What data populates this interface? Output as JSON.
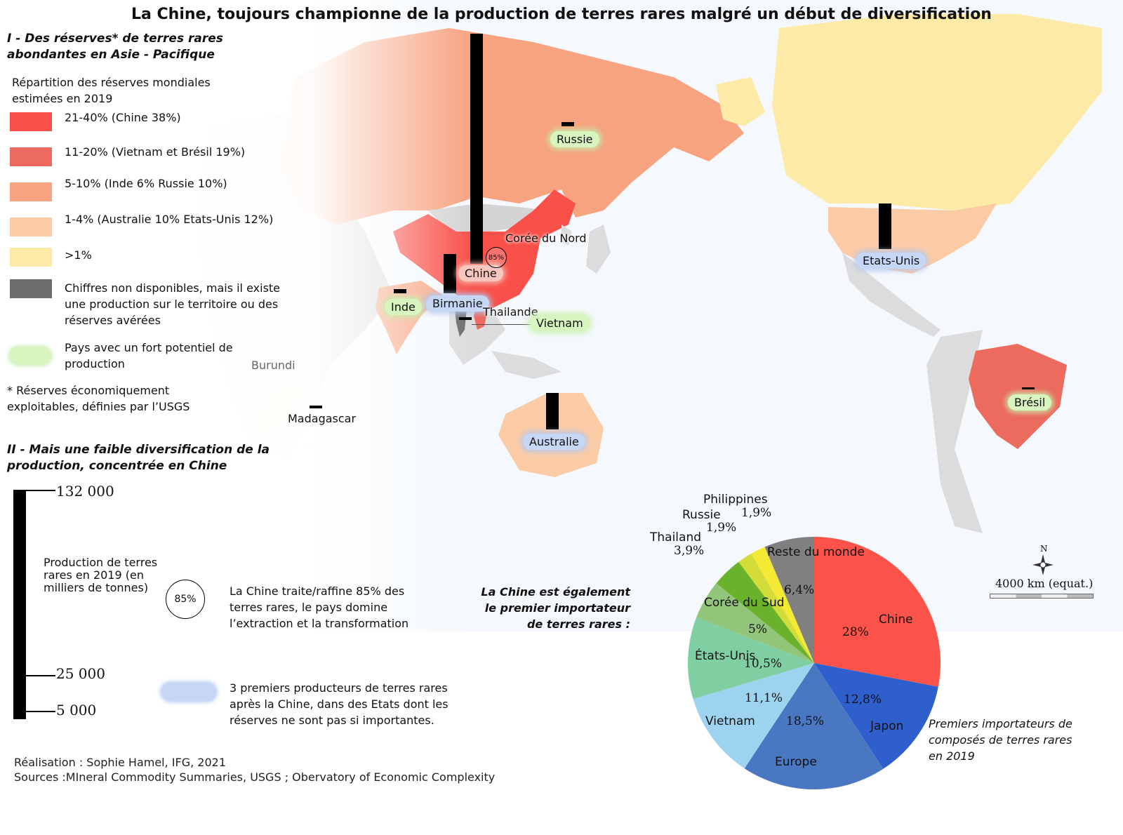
{
  "title": "La Chine, toujours championne de la production de terres rares malgré un début de diversification",
  "section1": {
    "heading": "I - Des réserves* de terres rares abondantes en Asie - Pacifique",
    "legend_title": "Répartition des réserves mondiales estimées en 2019",
    "items": [
      {
        "label": "21-40% (Chine 38%)",
        "color": "#f9514a"
      },
      {
        "label": "11-20% (Vietnam et Brésil 19%)",
        "color": "#ec6a5e"
      },
      {
        "label": "5-10% (Inde 6%  Russie 10%)",
        "color": "#f7a380"
      },
      {
        "label": "1-4% (Australie 10% Etats-Unis 12%)",
        "color": "#fbcba6"
      },
      {
        "label": ">1%",
        "color": "#fdeaa6"
      },
      {
        "label": "Chiffres non disponibles, mais il existe une production sur le territoire ou des réserves avérées",
        "color": "#6d6d6d"
      }
    ],
    "potential_label": "Pays avec un fort potentiel de production",
    "footnote": "* Réserves économiquement exploitables, définies par l’USGS"
  },
  "section2": {
    "heading": "II - Mais une faible diversification de la production, concentrée en Chine",
    "scale_ticks": [
      "132 000",
      "25 000",
      "5 000"
    ],
    "scale_label": "Production de terres rares en 2019 (en milliers de tonnes)",
    "circle_label": "85%",
    "circle_text": "La Chine traite/raffine 85% des terres rares, le pays domine l’extraction et la transformation",
    "blue_text": "3 premiers producteurs de terres rares après la Chine, dans des Etats dont les réserves ne sont pas si importantes."
  },
  "map_labels": {
    "russie": "Russie",
    "chine": "Chine",
    "china_circle": "85%",
    "coree": "Corée du Nord",
    "inde": "Inde",
    "birmanie": "Birmanie",
    "thailande": "Thailande",
    "vietnam": "Vietnam",
    "burundi": "Burundi",
    "madagascar": "Madagascar",
    "australie": "Australie",
    "etats_unis": "Etats-Unis",
    "bresil": "Brésil"
  },
  "compass": {
    "north": "N",
    "scale_text": "4000 km (equat.)"
  },
  "pie_intro": "La Chine est également le premier importateur de terres rares :",
  "pie_caption": "Premiers importateurs de composés de terres rares en 2019",
  "credits": {
    "realisation": "Réalisation : Sophie Hamel, IFG, 2021",
    "sources": "Sources :MIneral Commodity Summaries, USGS ; Obervatory of Economic Complexity"
  },
  "chart_data": {
    "type": "pie",
    "slices": [
      {
        "label": "Chine",
        "value": 28,
        "value_label": "28%",
        "color": "#fb5249"
      },
      {
        "label": "Japon",
        "value": 12.8,
        "value_label": "12,8%",
        "color": "#2f5fcc"
      },
      {
        "label": "Europe",
        "value": 18.5,
        "value_label": "18,5%",
        "color": "#4a77c2"
      },
      {
        "label": "Vietnam",
        "value": 11.1,
        "value_label": "11,1%",
        "color": "#9ed3ef"
      },
      {
        "label": "États-Unis",
        "value": 10.5,
        "value_label": "10,5%",
        "color": "#80cfa3"
      },
      {
        "label": "Corée du Sud",
        "value": 5,
        "value_label": "5%",
        "color": "#92c47a"
      },
      {
        "label": "Thailand",
        "value": 3.9,
        "value_label": "3,9%",
        "color": "#6ab22c"
      },
      {
        "label": "Russie",
        "value": 1.9,
        "value_label": "1,9%",
        "color": "#d4dc3a"
      },
      {
        "label": "Philippines",
        "value": 1.9,
        "value_label": "1,9%",
        "color": "#f4ea34"
      },
      {
        "label": "Reste du monde",
        "value": 6.4,
        "value_label": "6,4%",
        "color": "#808080"
      }
    ]
  }
}
